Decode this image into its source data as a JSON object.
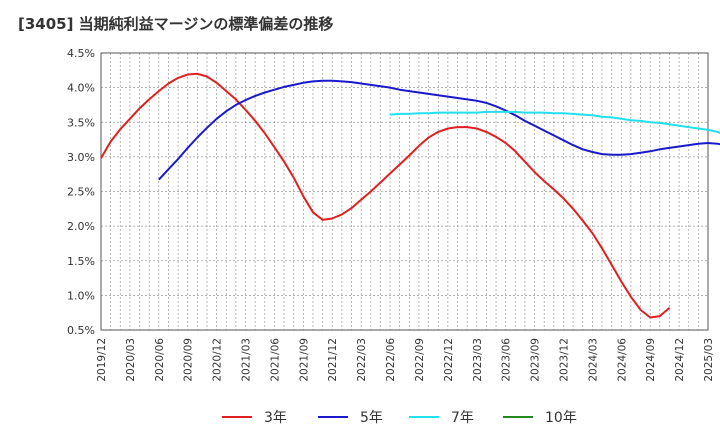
{
  "chart_data": {
    "title": "[3405]  当期純利益マージンの標準偏差の推移",
    "type": "line",
    "xlabel": "",
    "ylabel": "",
    "ylim": [
      0.5,
      4.5
    ],
    "y_ticks": [
      "0.5%",
      "1.0%",
      "1.5%",
      "2.0%",
      "2.5%",
      "3.0%",
      "3.5%",
      "4.0%",
      "4.5%"
    ],
    "x_ticks": [
      "2019/12",
      "2020/03",
      "2020/06",
      "2020/09",
      "2020/12",
      "2021/03",
      "2021/06",
      "2021/09",
      "2021/12",
      "2022/03",
      "2022/06",
      "2022/09",
      "2022/12",
      "2023/03",
      "2023/06",
      "2023/09",
      "2023/12",
      "2024/03",
      "2024/06",
      "2024/09",
      "2024/12",
      "2025/03"
    ],
    "grid": true,
    "legend_placement": "bottom",
    "series": [
      {
        "name": "3年",
        "color": "#e02020",
        "start_month_index": 0,
        "values": [
          2.98,
          3.22,
          3.4,
          3.55,
          3.7,
          3.83,
          3.95,
          4.06,
          4.14,
          4.19,
          4.2,
          4.16,
          4.07,
          3.95,
          3.83,
          3.68,
          3.52,
          3.34,
          3.14,
          2.93,
          2.7,
          2.43,
          2.2,
          2.09,
          2.11,
          2.17,
          2.26,
          2.38,
          2.5,
          2.63,
          2.76,
          2.89,
          3.02,
          3.16,
          3.28,
          3.36,
          3.41,
          3.43,
          3.43,
          3.41,
          3.36,
          3.29,
          3.2,
          3.08,
          2.93,
          2.78,
          2.65,
          2.53,
          2.4,
          2.25,
          2.08,
          1.9,
          1.68,
          1.44,
          1.2,
          0.98,
          0.79,
          0.68,
          0.7,
          0.82
        ]
      },
      {
        "name": "5年",
        "color": "#1a1acc",
        "start_month_index": 6,
        "values": [
          2.67,
          2.82,
          2.97,
          3.13,
          3.28,
          3.42,
          3.55,
          3.66,
          3.75,
          3.82,
          3.88,
          3.93,
          3.97,
          4.01,
          4.04,
          4.07,
          4.09,
          4.1,
          4.1,
          4.09,
          4.08,
          4.06,
          4.04,
          4.02,
          4.0,
          3.97,
          3.95,
          3.93,
          3.91,
          3.89,
          3.87,
          3.85,
          3.83,
          3.81,
          3.78,
          3.73,
          3.67,
          3.6,
          3.52,
          3.45,
          3.38,
          3.31,
          3.24,
          3.17,
          3.11,
          3.07,
          3.04,
          3.03,
          3.03,
          3.04,
          3.06,
          3.08,
          3.11,
          3.13,
          3.15,
          3.17,
          3.19,
          3.2,
          3.19,
          3.16,
          3.11
        ]
      },
      {
        "name": "7年",
        "color": "#22e0ee",
        "start_month_index": 30,
        "values": [
          3.61,
          3.62,
          3.62,
          3.63,
          3.63,
          3.64,
          3.64,
          3.64,
          3.64,
          3.64,
          3.65,
          3.65,
          3.65,
          3.65,
          3.64,
          3.64,
          3.64,
          3.63,
          3.63,
          3.62,
          3.61,
          3.6,
          3.58,
          3.57,
          3.55,
          3.53,
          3.52,
          3.5,
          3.49,
          3.47,
          3.45,
          3.43,
          3.41,
          3.39,
          3.36,
          3.31,
          3.25
        ]
      },
      {
        "name": "10年",
        "color": "#228822",
        "start_month_index": 0,
        "values": []
      }
    ]
  }
}
